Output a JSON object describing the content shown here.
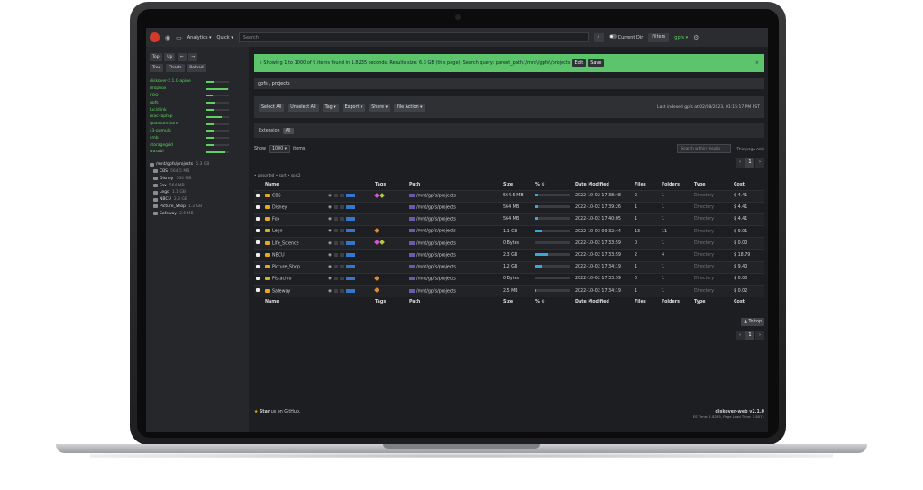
{
  "navbar": {
    "analytics": "Analytics ▾",
    "quick": "Quick ▾",
    "search_placeholder": "Search",
    "current_dir": "Current Dir",
    "filters": "Filters",
    "user": "gpfs ▾"
  },
  "sidebar": {
    "buttons": {
      "top": "Top",
      "up": "Up",
      "back": "←",
      "forward": "→",
      "tree": "Tree",
      "charts": "Charts",
      "reload": "Reload"
    },
    "disks": [
      {
        "name": "diskover-2.1.0-apine",
        "fill": 0.35
      },
      {
        "name": "dropbox",
        "fill": 0.95
      },
      {
        "name": "FOO",
        "fill": 0.3
      },
      {
        "name": "gpfs",
        "fill": 0.4
      },
      {
        "name": "lucidlink",
        "fill": 0.35
      },
      {
        "name": "mac-laptop",
        "fill": 0.7
      },
      {
        "name": "quantumstore",
        "fill": 0.35
      },
      {
        "name": "s3-qumulo",
        "fill": 0.35
      },
      {
        "name": "smb",
        "fill": 0.35
      },
      {
        "name": "storagegrid",
        "fill": 0.35
      },
      {
        "name": "wasabi",
        "fill": 0.85
      }
    ],
    "tree_root": {
      "name": "/mnt/gpfs/projects",
      "size": "6.3 GB"
    },
    "tree_items": [
      {
        "name": "CBS",
        "size": "564.5 MB"
      },
      {
        "name": "Disney",
        "size": "564 MB"
      },
      {
        "name": "Fox",
        "size": "564 MB"
      },
      {
        "name": "Lego",
        "size": "1.1 GB"
      },
      {
        "name": "NBCU",
        "size": "2.3 GB"
      },
      {
        "name": "Picture_Shop",
        "size": "1.2 GB"
      },
      {
        "name": "Safeway",
        "size": "2.5 MB"
      }
    ]
  },
  "alert": {
    "text": "Showing 1 to 1000 of 9 items found in 1.8235 seconds. Results size: 6.3 GB (this page). Search query: parent_path:\\/mnt\\/gpfs\\/projects",
    "edit": "Edit",
    "save": "Save",
    "close": "×"
  },
  "breadcrumb": {
    "root": "gpfs",
    "sep": "/",
    "current": "projects"
  },
  "actions": {
    "select_all": "Select All",
    "unselect_all": "Unselect All",
    "tag": "Tag ▾",
    "export": "Export ▾",
    "share": "Share ▾",
    "file_action": "File Action ▾",
    "last_indexed": "Last indexed gpfs at 02/08/2023, 01:15:17 PM PST"
  },
  "extension": {
    "label": "Extension",
    "all": "All"
  },
  "show": {
    "label": "Show",
    "value": "1000 ▾",
    "items": "items",
    "search_placeholder": "Search within results",
    "this_page_only": "This page only"
  },
  "pager": {
    "prev": "‹",
    "page": "1",
    "next": "›"
  },
  "sort_note": "• unsorted • sort • sort2",
  "table": {
    "headers": {
      "name": "Name",
      "tags": "Tags",
      "path": "Path",
      "size": "Size",
      "pct": "% ⚙",
      "modified": "Date Modified",
      "files": "Files",
      "folders": "Folders",
      "type": "Type",
      "cost": "Cost"
    },
    "rows": [
      {
        "name": "CBS",
        "tags": [
          "#d94fd0",
          "#b7c93a"
        ],
        "path": "/mnt/gpfs/projects",
        "size": "564.5 MB",
        "pct": 0.09,
        "modified": "2022-10-02 17:38:48",
        "files": "2",
        "folders": "1",
        "type": "Directory",
        "cost": "$ 4.41"
      },
      {
        "name": "Disney",
        "tags": [],
        "path": "/mnt/gpfs/projects",
        "size": "564 MB",
        "pct": 0.09,
        "modified": "2022-10-02 17:39:26",
        "files": "1",
        "folders": "1",
        "type": "Directory",
        "cost": "$ 4.41"
      },
      {
        "name": "Fox",
        "tags": [],
        "path": "/mnt/gpfs/projects",
        "size": "564 MB",
        "pct": 0.09,
        "modified": "2022-10-02 17:40:05",
        "files": "1",
        "folders": "1",
        "type": "Directory",
        "cost": "$ 4.41"
      },
      {
        "name": "Lego",
        "tags": [
          "#e08a2c"
        ],
        "path": "/mnt/gpfs/projects",
        "size": "1.1 GB",
        "pct": 0.18,
        "modified": "2022-10-03 09:32:44",
        "files": "13",
        "folders": "11",
        "type": "Directory",
        "cost": "$ 9.01"
      },
      {
        "name": "Life_Science",
        "tags": [
          "#d94fd0",
          "#b7c93a"
        ],
        "path": "/mnt/gpfs/projects",
        "size": "0 Bytes",
        "pct": 0,
        "modified": "2022-10-02 17:33:59",
        "files": "0",
        "folders": "1",
        "type": "Directory",
        "cost": "$ 0.00"
      },
      {
        "name": "NBCU",
        "tags": [],
        "path": "/mnt/gpfs/projects",
        "size": "2.3 GB",
        "pct": 0.37,
        "modified": "2022-10-02 17:33:59",
        "files": "2",
        "folders": "4",
        "type": "Directory",
        "cost": "$ 18.79"
      },
      {
        "name": "Picture_Shop",
        "tags": [],
        "path": "/mnt/gpfs/projects",
        "size": "1.2 GB",
        "pct": 0.19,
        "modified": "2022-10-02 17:34:19",
        "files": "1",
        "folders": "1",
        "type": "Directory",
        "cost": "$ 9.40"
      },
      {
        "name": "Pistachio",
        "tags": [
          "#e08a2c"
        ],
        "path": "/mnt/gpfs/projects",
        "size": "0 Bytes",
        "pct": 0,
        "modified": "2022-10-02 17:33:59",
        "files": "0",
        "folders": "1",
        "type": "Directory",
        "cost": "$ 0.00"
      },
      {
        "name": "Safeway",
        "tags": [
          "#e08a2c"
        ],
        "path": "/mnt/gpfs/projects",
        "size": "2.5 MB",
        "pct": 0.01,
        "modified": "2022-10-02 17:34:19",
        "files": "1",
        "folders": "1",
        "type": "Directory",
        "cost": "$ 0.02"
      }
    ]
  },
  "to_top": "▲ To top",
  "footer": {
    "star": "★",
    "star_text_bold": "Star",
    "star_text": " us on GitHub.",
    "app": "diskover-web v2.1.0",
    "timing": "ES Time: 1.8235, Page Load Time: 1.8071"
  },
  "colors": {
    "accent_green": "#5cc46a",
    "bar_blue": "#3aa7d8",
    "folder": "#e5a823"
  }
}
